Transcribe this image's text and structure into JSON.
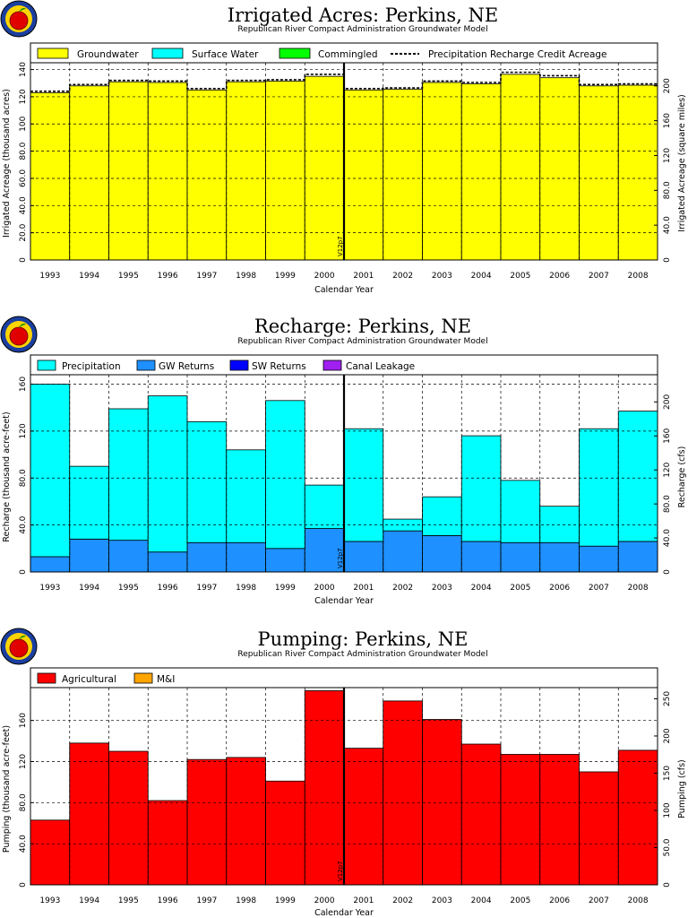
{
  "colors": {
    "groundwater": "#ffff00",
    "surface_water": "#00ffff",
    "commingled": "#00ff00",
    "precipitation": "#00ffff",
    "gw_returns": "#1e90ff",
    "sw_returns": "#0000ff",
    "canal_leakage": "#a020f0",
    "agricultural": "#ff0000",
    "mi": "#ffa500"
  },
  "chart_data": [
    {
      "type": "bar",
      "title": "Irrigated Acres: Perkins, NE",
      "subtitle": "Republican River Compact Administration Groundwater Model",
      "xlabel": "Calendar Year",
      "ylabel": "Irrigated Acreage (thousand acres)",
      "y2label": "Irrigated Acreage (square miles)",
      "categories": [
        "1993",
        "1994",
        "1995",
        "1996",
        "1997",
        "1998",
        "1999",
        "2000",
        "2001",
        "2002",
        "2003",
        "2004",
        "2005",
        "2006",
        "2007",
        "2008"
      ],
      "ylim": [
        0,
        145
      ],
      "yticks": [
        "0",
        "20.0",
        "40.0",
        "60.0",
        "80.0",
        "100",
        "120",
        "140"
      ],
      "y2lim": [
        0,
        226.56
      ],
      "y2ticks": [
        "0",
        "40.0",
        "80.0",
        "120",
        "160",
        "200"
      ],
      "grid": true,
      "legend_position": "top",
      "marker": {
        "label": "V12p7",
        "after_category": "2000"
      },
      "series": [
        {
          "name": "Groundwater",
          "values": [
            123,
            128,
            131,
            130.5,
            125,
            131,
            131.5,
            135,
            125,
            125.5,
            130.5,
            129.5,
            136.5,
            134,
            128,
            128.5
          ]
        },
        {
          "name": "Surface Water",
          "values": [
            0,
            0,
            0,
            0,
            0,
            0,
            0,
            0,
            0,
            0,
            0,
            0,
            0,
            0,
            0,
            0
          ]
        },
        {
          "name": "Commingled",
          "values": [
            0,
            0,
            0,
            0,
            0,
            0,
            0,
            0,
            0,
            0,
            0,
            0,
            0,
            0,
            0,
            0
          ]
        }
      ],
      "line_series": {
        "name": "Precipitation Recharge Credit Acreage",
        "values": [
          124,
          129,
          132,
          131.5,
          126,
          132,
          132.5,
          136.5,
          126,
          126.5,
          131.5,
          130.5,
          138,
          135.5,
          129,
          129.5
        ]
      }
    },
    {
      "type": "bar",
      "title": "Recharge: Perkins, NE",
      "subtitle": "Republican River Compact Administration Groundwater Model",
      "xlabel": "Calendar Year",
      "ylabel": "Recharge (thousand acre-feet)",
      "y2label": "Recharge (cfs)",
      "categories": [
        "1993",
        "1994",
        "1995",
        "1996",
        "1997",
        "1998",
        "1999",
        "2000",
        "2001",
        "2002",
        "2003",
        "2004",
        "2005",
        "2006",
        "2007",
        "2008"
      ],
      "ylim": [
        0,
        168
      ],
      "yticks": [
        "0",
        "40.0",
        "80.0",
        "120",
        "160"
      ],
      "y2lim": [
        0,
        232
      ],
      "y2ticks": [
        "0",
        "40.0",
        "80.0",
        "120",
        "160",
        "200"
      ],
      "grid": true,
      "legend_position": "top",
      "marker": {
        "label": "V12p7",
        "after_category": "2000"
      },
      "series": [
        {
          "name": "GW Returns",
          "values": [
            13,
            28,
            27,
            17,
            25,
            25,
            20,
            37,
            26,
            35,
            31,
            26,
            25,
            25,
            22,
            26
          ]
        },
        {
          "name": "SW Returns",
          "values": [
            0,
            0,
            0,
            0,
            0,
            0,
            0,
            0,
            0,
            0,
            0,
            0,
            0,
            0,
            0,
            0
          ]
        },
        {
          "name": "Canal Leakage",
          "values": [
            0,
            0,
            0,
            0,
            0,
            0,
            0,
            0,
            0,
            0,
            0,
            0,
            0,
            0,
            0,
            0
          ]
        },
        {
          "name": "Precipitation",
          "values": [
            147,
            62,
            112,
            133,
            103,
            79,
            126,
            37,
            96,
            10,
            33,
            90,
            53,
            31,
            100,
            111
          ]
        }
      ]
    },
    {
      "type": "bar",
      "title": "Pumping: Perkins, NE",
      "subtitle": "Republican River Compact Administration Groundwater Model",
      "xlabel": "Calendar Year",
      "ylabel": "Pumping (thousand acre-feet)",
      "y2label": "Pumping (cfs)",
      "categories": [
        "1993",
        "1994",
        "1995",
        "1996",
        "1997",
        "1998",
        "1999",
        "2000",
        "2001",
        "2002",
        "2003",
        "2004",
        "2005",
        "2006",
        "2007",
        "2008"
      ],
      "ylim": [
        0,
        192
      ],
      "yticks": [
        "0",
        "40.0",
        "80.0",
        "120",
        "160"
      ],
      "y2lim": [
        0,
        265
      ],
      "y2ticks": [
        "0",
        "50.0",
        "100",
        "150",
        "200",
        "250"
      ],
      "grid": true,
      "legend_position": "top",
      "marker": {
        "label": "V12p7",
        "after_category": "2000"
      },
      "series": [
        {
          "name": "Agricultural",
          "values": [
            63,
            138,
            130,
            82,
            122,
            124,
            101,
            189,
            133,
            179,
            161,
            137,
            127,
            127,
            110,
            131
          ]
        },
        {
          "name": "M&I",
          "values": [
            0,
            0,
            0,
            0,
            0,
            0,
            0,
            0,
            0,
            0,
            0,
            0,
            0,
            0,
            0,
            0
          ]
        }
      ]
    }
  ]
}
